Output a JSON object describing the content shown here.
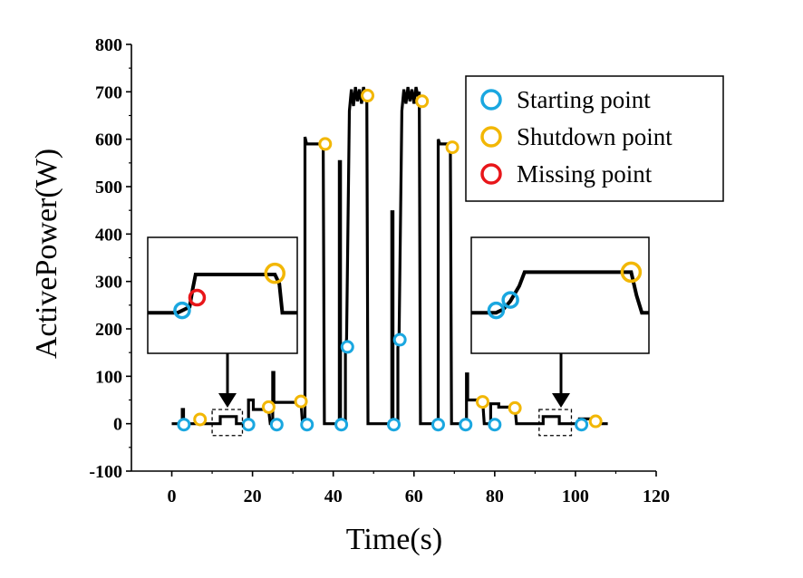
{
  "chart_data": {
    "type": "line",
    "xlabel": "Time(s)",
    "ylabel": "ActivePower(W)",
    "xlim": [
      -10,
      120
    ],
    "ylim": [
      -100,
      800
    ],
    "xticks": [
      0,
      20,
      40,
      60,
      80,
      100,
      120
    ],
    "yticks": [
      -100,
      0,
      100,
      200,
      300,
      400,
      500,
      600,
      700,
      800
    ],
    "colors": {
      "line": "#000000",
      "starting": "#1aa7e0",
      "shutdown": "#f2b705",
      "missing": "#e8161a"
    },
    "legend": {
      "placement": "top-right",
      "entries": [
        {
          "label": "Starting point",
          "marker": "starting"
        },
        {
          "label": "Shutdown point",
          "marker": "shutdown"
        },
        {
          "label": "Missing point",
          "marker": "missing"
        }
      ]
    },
    "series": [
      {
        "name": "ActivePower",
        "points": [
          [
            0,
            0
          ],
          [
            2.6,
            0
          ],
          [
            2.6,
            30
          ],
          [
            2.9,
            30
          ],
          [
            2.9,
            0
          ],
          [
            5,
            0
          ],
          [
            6.5,
            0
          ],
          [
            7,
            0
          ],
          [
            12,
            0
          ],
          [
            12,
            15
          ],
          [
            16,
            15
          ],
          [
            16,
            0
          ],
          [
            19,
            0
          ],
          [
            19,
            50
          ],
          [
            20.2,
            50
          ],
          [
            20.2,
            30
          ],
          [
            23,
            30
          ],
          [
            24,
            30
          ],
          [
            24.4,
            0
          ],
          [
            25,
            0
          ],
          [
            25,
            108
          ],
          [
            25.3,
            108
          ],
          [
            25.3,
            45
          ],
          [
            32,
            45
          ],
          [
            32.4,
            0
          ],
          [
            33,
            0
          ],
          [
            33,
            605
          ],
          [
            33.4,
            590
          ],
          [
            37.5,
            590
          ],
          [
            37.8,
            0
          ],
          [
            41.5,
            0
          ],
          [
            41.5,
            553
          ],
          [
            41.8,
            553
          ],
          [
            41.8,
            0
          ],
          [
            43,
            0
          ],
          [
            43,
            150
          ],
          [
            43.3,
            180
          ],
          [
            44,
            660
          ],
          [
            44.5,
            705
          ],
          [
            45,
            670
          ],
          [
            45.5,
            710
          ],
          [
            46,
            680
          ],
          [
            46.5,
            705
          ],
          [
            47,
            675
          ],
          [
            47.5,
            710
          ],
          [
            48,
            690
          ],
          [
            48.3,
            700
          ],
          [
            48.6,
            0
          ],
          [
            54.5,
            0
          ],
          [
            54.5,
            447
          ],
          [
            54.8,
            447
          ],
          [
            54.8,
            0
          ],
          [
            56,
            0
          ],
          [
            56,
            160
          ],
          [
            56.3,
            180
          ],
          [
            57,
            660
          ],
          [
            57.5,
            705
          ],
          [
            58,
            675
          ],
          [
            58.5,
            710
          ],
          [
            59,
            680
          ],
          [
            59.5,
            705
          ],
          [
            60,
            675
          ],
          [
            60.5,
            710
          ],
          [
            61,
            690
          ],
          [
            61.3,
            700
          ],
          [
            61.6,
            0
          ],
          [
            66,
            0
          ],
          [
            66,
            600
          ],
          [
            66.4,
            590
          ],
          [
            69,
            590
          ],
          [
            69.3,
            0
          ],
          [
            73,
            0
          ],
          [
            73,
            105
          ],
          [
            73.3,
            105
          ],
          [
            73.3,
            50
          ],
          [
            77,
            50
          ],
          [
            77.4,
            0
          ],
          [
            79,
            0
          ],
          [
            79,
            42
          ],
          [
            81,
            42
          ],
          [
            81,
            35
          ],
          [
            85,
            35
          ],
          [
            85.4,
            0
          ],
          [
            92,
            0
          ],
          [
            92,
            15
          ],
          [
            96,
            15
          ],
          [
            96,
            0
          ],
          [
            101,
            0
          ],
          [
            101,
            10
          ],
          [
            104.5,
            10
          ],
          [
            104.8,
            0
          ],
          [
            108,
            0
          ]
        ]
      },
      {
        "name": "Starting point",
        "marker": "starting",
        "points": [
          [
            3,
            -2
          ],
          [
            19,
            -2
          ],
          [
            26,
            -2
          ],
          [
            33.5,
            -2
          ],
          [
            42,
            -2
          ],
          [
            43.5,
            162
          ],
          [
            55,
            -2
          ],
          [
            56.5,
            177
          ],
          [
            66,
            -2
          ],
          [
            72.8,
            -2
          ],
          [
            80,
            -2
          ],
          [
            101.5,
            -2
          ]
        ]
      },
      {
        "name": "Shutdown point",
        "marker": "shutdown",
        "points": [
          [
            7,
            9
          ],
          [
            24,
            35
          ],
          [
            32,
            47
          ],
          [
            38,
            590
          ],
          [
            48.5,
            692
          ],
          [
            62,
            680
          ],
          [
            69.5,
            583
          ],
          [
            77,
            46
          ],
          [
            85,
            33
          ],
          [
            105,
            5
          ]
        ]
      }
    ],
    "zoom_boxes": [
      {
        "x_range": [
          10,
          17.5
        ],
        "y_range": [
          -25,
          30
        ]
      },
      {
        "x_range": [
          91,
          99
        ],
        "y_range": [
          -25,
          30
        ]
      }
    ],
    "insets": [
      {
        "name": "left-inset",
        "trace": [
          [
            0,
            0.35
          ],
          [
            0.2,
            0.35
          ],
          [
            0.28,
            0.4
          ],
          [
            0.3,
            0.55
          ],
          [
            0.32,
            0.68
          ],
          [
            0.85,
            0.68
          ],
          [
            0.88,
            0.6
          ],
          [
            0.9,
            0.35
          ],
          [
            1,
            0.35
          ]
        ],
        "markers": [
          {
            "marker": "starting",
            "pos": [
              0.23,
              0.37
            ]
          },
          {
            "marker": "missing",
            "pos": [
              0.33,
              0.48
            ]
          },
          {
            "marker": "shutdown",
            "pos": [
              0.85,
              0.69
            ]
          }
        ]
      },
      {
        "name": "right-inset",
        "trace": [
          [
            0,
            0.35
          ],
          [
            0.14,
            0.35
          ],
          [
            0.18,
            0.38
          ],
          [
            0.22,
            0.45
          ],
          [
            0.27,
            0.58
          ],
          [
            0.3,
            0.7
          ],
          [
            0.9,
            0.7
          ],
          [
            0.93,
            0.5
          ],
          [
            0.96,
            0.35
          ],
          [
            1,
            0.35
          ]
        ],
        "markers": [
          {
            "marker": "starting",
            "pos": [
              0.14,
              0.37
            ]
          },
          {
            "marker": "starting",
            "pos": [
              0.22,
              0.46
            ]
          },
          {
            "marker": "shutdown",
            "pos": [
              0.9,
              0.7
            ]
          }
        ]
      }
    ]
  }
}
